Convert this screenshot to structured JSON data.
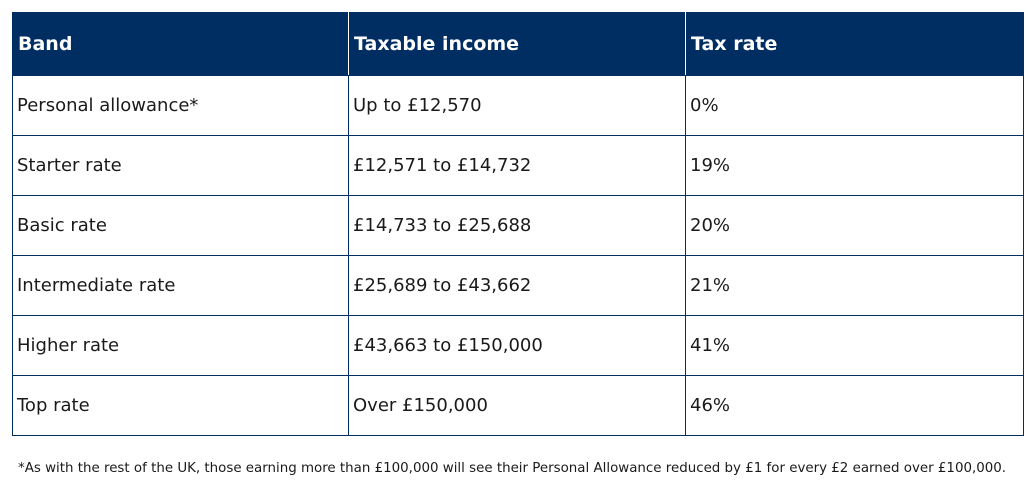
{
  "table": {
    "headers": [
      "Band",
      "Taxable income",
      "Tax rate"
    ],
    "rows": [
      [
        "Personal allowance*",
        "Up to £12,570",
        "0%"
      ],
      [
        "Starter rate",
        "£12,571 to £14,732",
        "19%"
      ],
      [
        "Basic rate",
        "£14,733 to £25,688",
        "20%"
      ],
      [
        "Intermediate rate",
        "£25,689 to £43,662",
        "21%"
      ],
      [
        "Higher rate",
        "£43,663 to £150,000",
        "41%"
      ],
      [
        "Top rate",
        "Over £150,000",
        "46%"
      ]
    ]
  },
  "footnote": "*As with the rest of the UK, those earning more than £100,000 will see their Personal Allowance reduced by £1 for every £2 earned over £100,000.",
  "colors": {
    "header_background": "#002d62",
    "header_text": "#ffffff",
    "border": "#002d62"
  }
}
